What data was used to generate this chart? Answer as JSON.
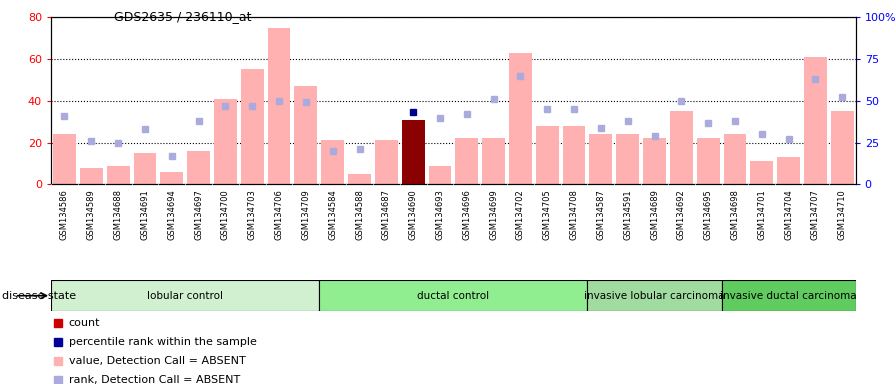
{
  "title": "GDS2635 / 236110_at",
  "samples": [
    "GSM134586",
    "GSM134589",
    "GSM134688",
    "GSM134691",
    "GSM134694",
    "GSM134697",
    "GSM134700",
    "GSM134703",
    "GSM134706",
    "GSM134709",
    "GSM134584",
    "GSM134588",
    "GSM134687",
    "GSM134690",
    "GSM134693",
    "GSM134696",
    "GSM134699",
    "GSM134702",
    "GSM134705",
    "GSM134708",
    "GSM134587",
    "GSM134591",
    "GSM134689",
    "GSM134692",
    "GSM134695",
    "GSM134698",
    "GSM134701",
    "GSM134704",
    "GSM134707",
    "GSM134710"
  ],
  "values": [
    24,
    8,
    9,
    15,
    6,
    16,
    41,
    55,
    75,
    47,
    21,
    5,
    21,
    31,
    9,
    22,
    22,
    63,
    28,
    28,
    24,
    24,
    22,
    35,
    22,
    24,
    11,
    13,
    61,
    35
  ],
  "ranks": [
    41,
    26,
    25,
    33,
    17,
    38,
    47,
    47,
    50,
    49,
    20,
    21,
    null,
    null,
    40,
    42,
    51,
    65,
    45,
    45,
    34,
    38,
    29,
    50,
    37,
    38,
    30,
    27,
    63,
    52
  ],
  "count_bar_idx": 13,
  "count_value": 31,
  "percentile_rank_idx": 13,
  "percentile_rank_value": 43,
  "groups": [
    {
      "label": "lobular control",
      "start": 0,
      "end": 9,
      "color": "#d0f0d0"
    },
    {
      "label": "ductal control",
      "start": 10,
      "end": 19,
      "color": "#90ee90"
    },
    {
      "label": "invasive lobular carcinoma",
      "start": 20,
      "end": 24,
      "color": "#a0dca0"
    },
    {
      "label": "invasive ductal carcinoma",
      "start": 25,
      "end": 29,
      "color": "#60cc60"
    }
  ],
  "ylim_left": [
    0,
    80
  ],
  "ylim_right": [
    0,
    100
  ],
  "yticks_left": [
    0,
    20,
    40,
    60,
    80
  ],
  "ytick_labels_right": [
    "0",
    "25",
    "50",
    "75",
    "100%"
  ],
  "bar_color_absent": "#ffb0b0",
  "count_color": "#8b0000",
  "rank_color": "#aaaadd",
  "percentile_color": "#00008b",
  "xtick_bg": "#c8c8c8",
  "legend_items": [
    {
      "label": "count",
      "color": "#cc0000"
    },
    {
      "label": "percentile rank within the sample",
      "color": "#000099"
    },
    {
      "label": "value, Detection Call = ABSENT",
      "color": "#ffb0b0"
    },
    {
      "label": "rank, Detection Call = ABSENT",
      "color": "#aaaadd"
    }
  ],
  "disease_state_label": "disease state"
}
